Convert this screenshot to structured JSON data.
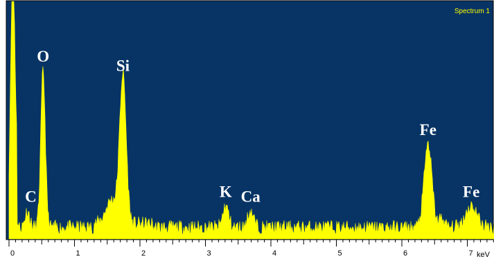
{
  "chart_data": {
    "type": "area",
    "legend": "Spectrum 1",
    "x_unit": "keV",
    "xlim": [
      0,
      7.6
    ],
    "ylim": [
      0,
      100
    ],
    "grid": false,
    "colors": {
      "plot_background": "#073465",
      "spectrum_fill": "#ffff00",
      "label_text": "#ffffff",
      "legend_text": "#ffff00"
    },
    "x_ticks": [
      "0",
      "1",
      "2",
      "3",
      "4",
      "5",
      "6",
      "7"
    ],
    "baseline": 4,
    "noise_level": 3,
    "peaks": [
      {
        "label": "",
        "center": 0.05,
        "height": 100,
        "width": 0.03
      },
      {
        "label": "C",
        "center": 0.28,
        "height": 7,
        "width": 0.035
      },
      {
        "label": "O",
        "center": 0.52,
        "height": 66,
        "width": 0.035
      },
      {
        "label": "Si",
        "center": 1.74,
        "height": 62,
        "width": 0.05
      },
      {
        "label": "",
        "center": 1.57,
        "height": 10,
        "width": 0.09
      },
      {
        "label": "K",
        "center": 3.31,
        "height": 9,
        "width": 0.045
      },
      {
        "label": "Ca",
        "center": 3.69,
        "height": 7,
        "width": 0.045
      },
      {
        "label": "Fe",
        "center": 6.4,
        "height": 35,
        "width": 0.06
      },
      {
        "label": "",
        "center": 6.61,
        "height": 4,
        "width": 0.04
      },
      {
        "label": "Fe",
        "center": 7.06,
        "height": 9,
        "width": 0.09
      }
    ]
  }
}
